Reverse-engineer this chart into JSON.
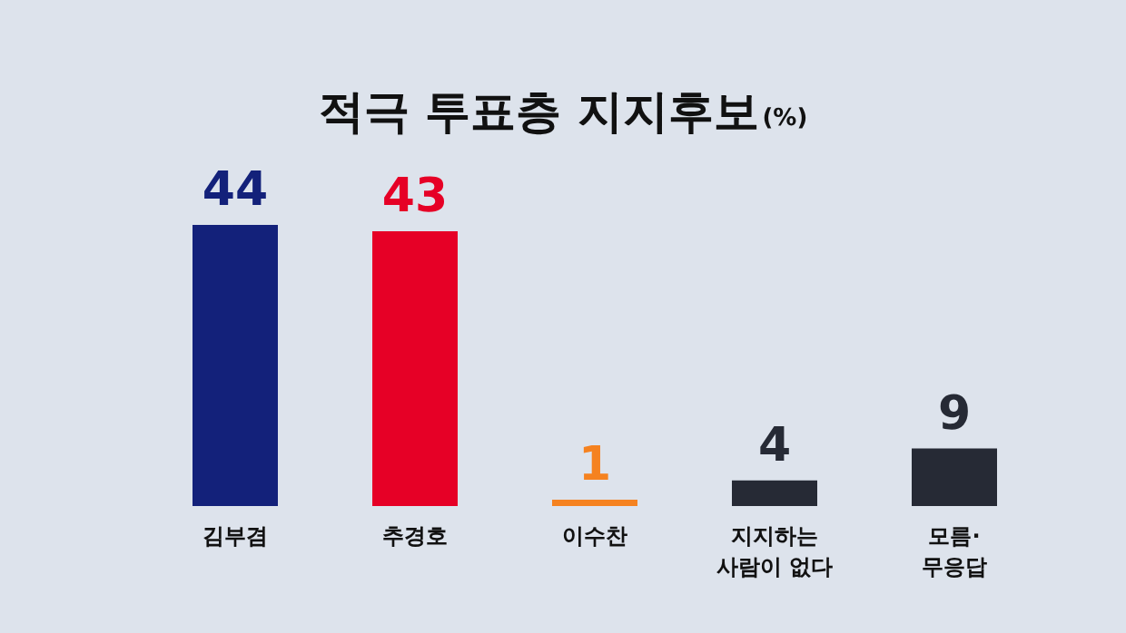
{
  "chart_data": {
    "type": "bar",
    "title": "적극 투표층 지지후보",
    "ylabel": "(%)",
    "categories": [
      "김부겸",
      "추경호",
      "이수찬",
      "지지하는\n사람이 없다",
      "모름·\n무응답"
    ],
    "values": [
      44,
      43,
      1,
      4,
      9
    ],
    "colors": [
      "#13217a",
      "#e60026",
      "#f58220",
      "#262a35",
      "#262a35"
    ],
    "ylim": [
      0,
      44
    ],
    "data_labels": true,
    "grid": false
  }
}
